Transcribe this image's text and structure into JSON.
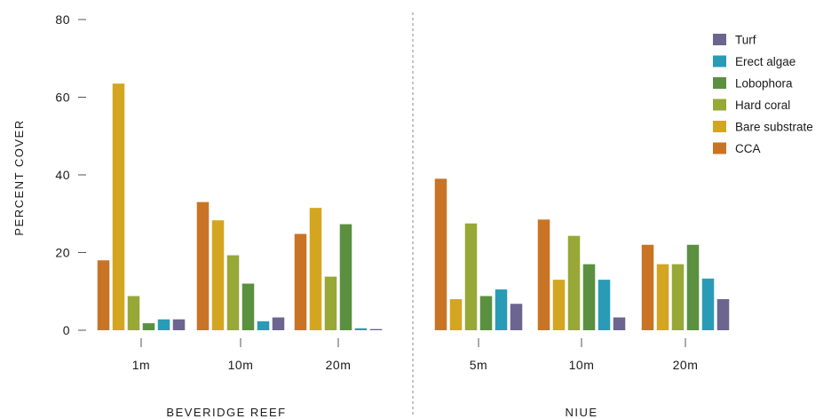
{
  "chart_data": {
    "type": "bar",
    "ylabel": "PERCENT COVER",
    "ylim": [
      0,
      80
    ],
    "yticks": [
      0,
      20,
      40,
      60,
      80
    ],
    "grid": false,
    "legend_position": "top-right",
    "series_colors": {
      "CCA": "#c87424",
      "Bare substrate": "#d4a520",
      "Hard coral": "#97a836",
      "Lobophora": "#5a9040",
      "Erect algae": "#2a9bb6",
      "Turf": "#6b6590"
    },
    "legend_order": [
      "Turf",
      "Erect algae",
      "Lobophora",
      "Hard coral",
      "Bare substrate",
      "CCA"
    ],
    "series_order": [
      "CCA",
      "Bare substrate",
      "Hard coral",
      "Lobophora",
      "Erect algae",
      "Turf"
    ],
    "groups": [
      {
        "name": "BEVERIDGE REEF",
        "categories": [
          {
            "label": "1m",
            "values": [
              18,
              63.5,
              8.8,
              1.8,
              2.8,
              2.8
            ]
          },
          {
            "label": "10m",
            "values": [
              33,
              28.3,
              19.3,
              12,
              2.3,
              3.3
            ]
          },
          {
            "label": "20m",
            "values": [
              24.8,
              31.5,
              13.8,
              27.3,
              0.5,
              0.3
            ]
          }
        ]
      },
      {
        "name": "NIUE",
        "categories": [
          {
            "label": "5m",
            "values": [
              39,
              8,
              27.5,
              8.8,
              10.5,
              6.8
            ]
          },
          {
            "label": "10m",
            "values": [
              28.5,
              13,
              24.3,
              17,
              13,
              3.3
            ]
          },
          {
            "label": "20m",
            "values": [
              22,
              17,
              17,
              22,
              13.3,
              8
            ]
          }
        ]
      }
    ]
  }
}
